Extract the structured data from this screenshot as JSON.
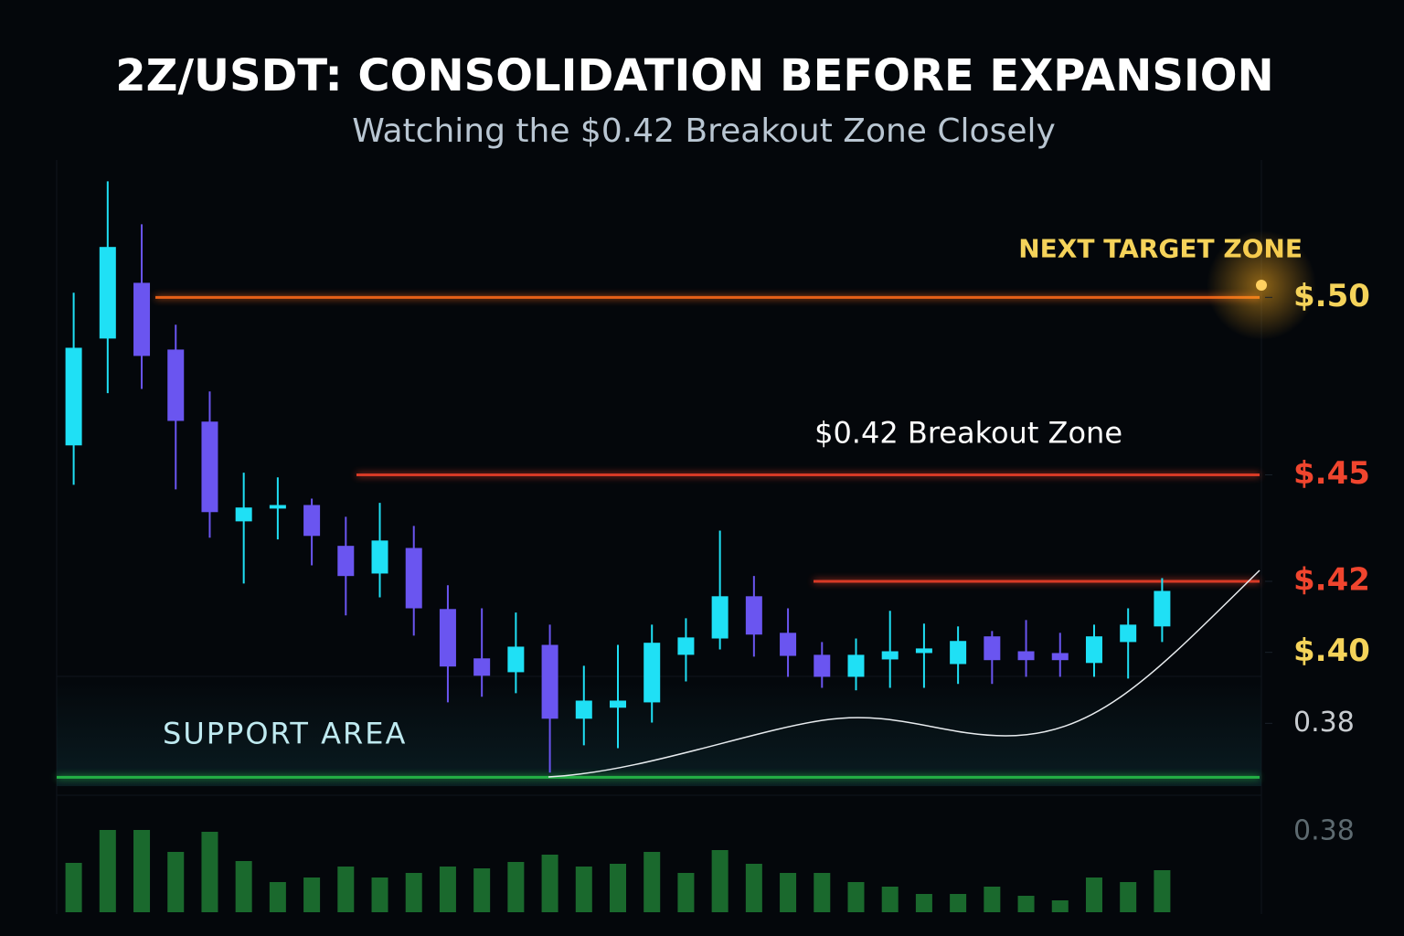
{
  "chart_data": {
    "type": "candlestick",
    "title": "2Z/USDT: CONSOLIDATION BEFORE EXPANSION",
    "subtitle": "Watching the $0.42 Breakout Zone Closely",
    "ylim": [
      0.36,
      0.54
    ],
    "yticks": [
      {
        "value": 0.5,
        "label": "$.50"
      },
      {
        "value": 0.45,
        "label": "$.45"
      },
      {
        "value": 0.42,
        "label": "$.42"
      },
      {
        "value": 0.4,
        "label": "$.40"
      },
      0.38
    ],
    "ytick_colors": [
      "#f5d35a",
      "#f0452e",
      "#f0452e",
      "#f5d35a",
      "#c8ccd0"
    ],
    "volume_axis_label": "0.38",
    "up_color": "#1fe0f5",
    "down_color": "#6a55f0",
    "volume_color": "#1f7a34",
    "vlim": [
      0,
      100
    ],
    "open": [
      0.4583,
      0.4884,
      0.5041,
      0.4853,
      0.465,
      0.4369,
      0.4405,
      0.4415,
      0.43,
      0.4222,
      0.4294,
      0.4122,
      0.3983,
      0.3944,
      0.4021,
      0.3813,
      0.3844,
      0.3859,
      0.3993,
      0.4039,
      0.4158,
      0.4055,
      0.3993,
      0.3931,
      0.398,
      0.3998,
      0.3967,
      0.4045,
      0.4003,
      0.3998,
      0.397,
      0.4029,
      0.4073
    ],
    "high": [
      0.5013,
      0.5327,
      0.5206,
      0.4923,
      0.4735,
      0.4506,
      0.4493,
      0.4433,
      0.4382,
      0.4421,
      0.4356,
      0.4189,
      0.4124,
      0.4112,
      0.4078,
      0.3962,
      0.4021,
      0.4078,
      0.4096,
      0.4343,
      0.4215,
      0.4124,
      0.4029,
      0.4039,
      0.4117,
      0.4081,
      0.4073,
      0.406,
      0.4091,
      0.4055,
      0.4078,
      0.4124,
      0.4209
    ],
    "low": [
      0.4472,
      0.473,
      0.4742,
      0.4459,
      0.4323,
      0.4194,
      0.4318,
      0.4245,
      0.4104,
      0.4155,
      0.4047,
      0.3859,
      0.3875,
      0.3885,
      0.3661,
      0.3738,
      0.373,
      0.3802,
      0.3918,
      0.4008,
      0.3988,
      0.3931,
      0.39,
      0.3893,
      0.39,
      0.39,
      0.3911,
      0.3911,
      0.3931,
      0.3931,
      0.3931,
      0.3926,
      0.4029
    ],
    "close": [
      0.4858,
      0.5142,
      0.4835,
      0.4652,
      0.4395,
      0.4408,
      0.4415,
      0.4328,
      0.4215,
      0.4315,
      0.4124,
      0.396,
      0.3934,
      0.4016,
      0.3813,
      0.3864,
      0.3864,
      0.4027,
      0.4042,
      0.4158,
      0.405,
      0.399,
      0.3931,
      0.3993,
      0.4003,
      0.4011,
      0.4032,
      0.3978,
      0.3978,
      0.3978,
      0.4045,
      0.4078,
      0.4173
    ],
    "volume": [
      54,
      90,
      90,
      66,
      88,
      56,
      33,
      38,
      50,
      38,
      43,
      50,
      48,
      55,
      63,
      50,
      53,
      66,
      43,
      68,
      53,
      43,
      43,
      33,
      28,
      20,
      20,
      28,
      18,
      13,
      38,
      33,
      46
    ],
    "levels": [
      {
        "value": 0.5,
        "color": "#ff6a1a",
        "label": "NEXT TARGET ZONE",
        "label_color": "#f5d35a"
      },
      {
        "value": 0.45,
        "color": "#f0402a",
        "label": "$0.42 Breakout Zone",
        "label_color": "#ffffff"
      },
      {
        "value": 0.42,
        "color": "#f0402a"
      },
      {
        "value": 0.3648,
        "color": "#27c24a",
        "label": "SUPPORT AREA",
        "label_color": "#bfeaf0"
      }
    ]
  }
}
